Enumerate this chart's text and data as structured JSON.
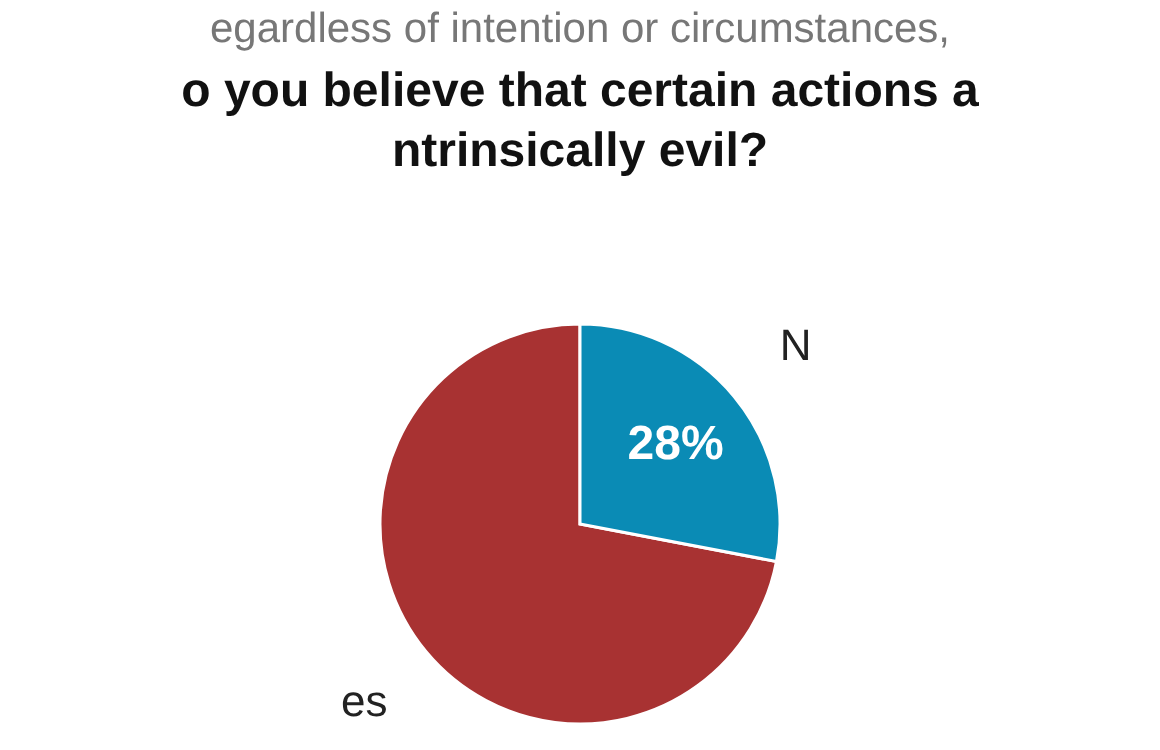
{
  "chart_data": {
    "type": "pie",
    "subtitle": "egardless of intention or circumstances,",
    "title": "o you believe that certain actions a\nntrinsically evil?",
    "categories": [
      "es",
      "N"
    ],
    "values": [
      72,
      28
    ],
    "colors": [
      "#a83232",
      "#0a8bb5"
    ],
    "value_labels": [
      null,
      "28%"
    ],
    "legend": false
  }
}
